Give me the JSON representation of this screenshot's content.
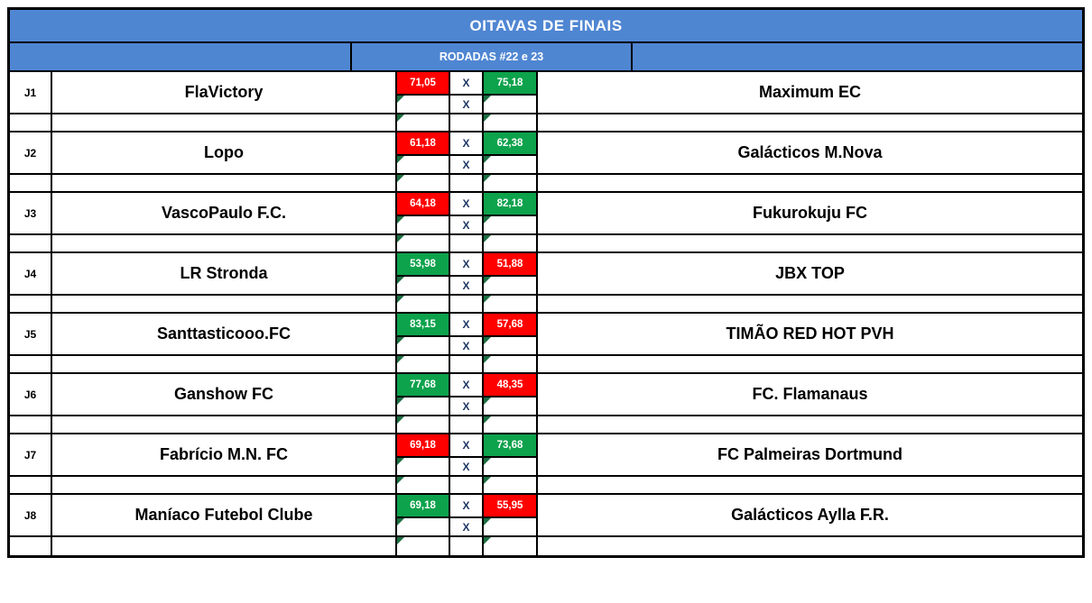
{
  "header": {
    "title": "OITAVAS DE FINAIS",
    "subtitle": "RODADAS #22 e 23"
  },
  "labels": {
    "x_separator": "X"
  },
  "colors": {
    "header_blue": "#4f86d2",
    "win_green": "#0da24c",
    "loss_red": "#ff0000",
    "indicator_triangle_green": "#1c6f42",
    "x_text_navy": "#1f3864",
    "border_black": "#000000"
  },
  "matches": [
    {
      "id": "J1",
      "home": "FlaVictory",
      "away": "Maximum EC",
      "home_score": "71,05",
      "away_score": "75,18",
      "home_result": "loss",
      "away_result": "win"
    },
    {
      "id": "J2",
      "home": "Lopo",
      "away": "Galácticos M.Nova",
      "home_score": "61,18",
      "away_score": "62,38",
      "home_result": "loss",
      "away_result": "win"
    },
    {
      "id": "J3",
      "home": "VascoPaulo F.C.",
      "away": "Fukurokuju FC",
      "home_score": "64,18",
      "away_score": "82,18",
      "home_result": "loss",
      "away_result": "win"
    },
    {
      "id": "J4",
      "home": "LR Stronda",
      "away": "JBX TOP",
      "home_score": "53,98",
      "away_score": "51,88",
      "home_result": "win",
      "away_result": "loss"
    },
    {
      "id": "J5",
      "home": "Santtasticooo.FC",
      "away": "TIMÃO RED HOT PVH",
      "home_score": "83,15",
      "away_score": "57,68",
      "home_result": "win",
      "away_result": "loss"
    },
    {
      "id": "J6",
      "home": "Ganshow FC",
      "away": "FC. Flamanaus",
      "home_score": "77,68",
      "away_score": "48,35",
      "home_result": "win",
      "away_result": "loss"
    },
    {
      "id": "J7",
      "home": "Fabrício M.N. FC",
      "away": "FC Palmeiras Dortmund",
      "home_score": "69,18",
      "away_score": "73,68",
      "home_result": "loss",
      "away_result": "win"
    },
    {
      "id": "J8",
      "home": "Maníaco Futebol Clube",
      "away": "Galácticos Aylla F.R.",
      "home_score": "69,18",
      "away_score": "55,95",
      "home_result": "win",
      "away_result": "loss"
    }
  ]
}
